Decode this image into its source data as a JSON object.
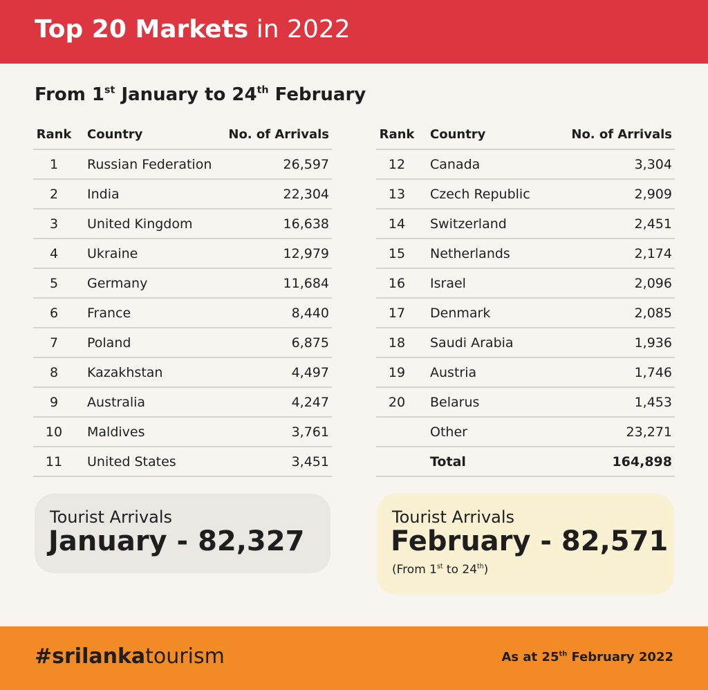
{
  "header": {
    "title_bold": "Top 20 Markets",
    "title_light": "in 2022"
  },
  "subtitle": [
    "From 1",
    "st",
    " January to 24",
    "th",
    " February"
  ],
  "left_table": {
    "columns": [
      "Rank",
      "Country",
      "No. of Arrivals"
    ],
    "rows": [
      [
        1,
        "Russian Federation",
        "26,597"
      ],
      [
        2,
        "India",
        "22,304"
      ],
      [
        3,
        "United Kingdom",
        "16,638"
      ],
      [
        4,
        "Ukraine",
        "12,979"
      ],
      [
        5,
        "Germany",
        "11,684"
      ],
      [
        6,
        "France",
        "8,440"
      ],
      [
        7,
        "Poland",
        "6,875"
      ],
      [
        8,
        "Kazakhstan",
        "4,497"
      ],
      [
        9,
        "Australia",
        "4,247"
      ],
      [
        10,
        "Maldives",
        "3,761"
      ],
      [
        11,
        "United States",
        "3,451"
      ]
    ]
  },
  "right_table": {
    "columns": [
      "Rank",
      "Country",
      "No. of Arrivals"
    ],
    "rows": [
      [
        12,
        "Canada",
        "3,304"
      ],
      [
        13,
        "Czech Republic",
        "2,909"
      ],
      [
        14,
        "Switzerland",
        "2,451"
      ],
      [
        15,
        "Netherlands",
        "2,174"
      ],
      [
        16,
        "Israel",
        "2,096"
      ],
      [
        17,
        "Denmark",
        "2,085"
      ],
      [
        18,
        "Saudi Arabia",
        "1,936"
      ],
      [
        19,
        "Austria",
        "1,746"
      ],
      [
        20,
        "Belarus",
        "1,453"
      ]
    ],
    "other": {
      "label": "Other",
      "value": "23,271"
    },
    "total": {
      "label": "Total",
      "value": "164,898"
    }
  },
  "january_card": {
    "label": "Tourist Arrivals",
    "value": "January - 82,327"
  },
  "february_card": {
    "label": "Tourist Arrivals",
    "value": "February - 82,571",
    "note": [
      "(From 1",
      "st",
      " to 24",
      "th",
      ")"
    ]
  },
  "footer": {
    "hashtag_bold": "#srilanka",
    "hashtag_light": "tourism",
    "date": [
      "As at 25",
      "th",
      " February 2022"
    ]
  }
}
